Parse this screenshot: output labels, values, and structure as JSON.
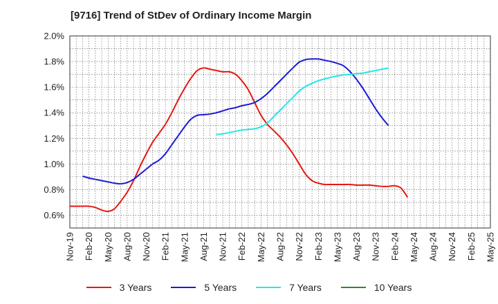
{
  "chart_data": {
    "type": "line",
    "title": "[9716]  Trend of StDev of Ordinary Income Margin",
    "xlabel": "",
    "ylabel": "",
    "x_ticks": [
      "Nov-19",
      "Feb-20",
      "May-20",
      "Aug-20",
      "Nov-20",
      "Feb-21",
      "May-21",
      "Aug-21",
      "Nov-21",
      "Feb-22",
      "May-22",
      "Aug-22",
      "Nov-22",
      "Feb-23",
      "May-23",
      "Aug-23",
      "Nov-23",
      "Feb-24",
      "May-24",
      "Aug-24",
      "Nov-24",
      "Feb-25",
      "May-25"
    ],
    "y_ticks": [
      "0.6%",
      "0.8%",
      "1.0%",
      "1.2%",
      "1.4%",
      "1.6%",
      "1.8%",
      "2.0%"
    ],
    "ylim": [
      0.5,
      2.0
    ],
    "grid": "dotted",
    "legend_position": "bottom",
    "series": [
      {
        "name": "3 Years",
        "color": "#e8150f",
        "values": [
          0.67,
          0.67,
          0.67,
          0.67,
          0.66,
          0.64,
          0.63,
          0.65,
          0.71,
          0.78,
          0.87,
          0.98,
          1.08,
          1.17,
          1.24,
          1.31,
          1.4,
          1.5,
          1.59,
          1.67,
          1.73,
          1.75,
          1.74,
          1.73,
          1.72,
          1.72,
          1.7,
          1.65,
          1.58,
          1.48,
          1.38,
          1.31,
          1.26,
          1.21,
          1.15,
          1.08,
          1.0,
          0.92,
          0.87,
          0.85,
          0.84,
          0.84,
          0.84,
          0.84,
          0.84,
          0.835,
          0.835,
          0.835,
          0.83,
          0.825,
          0.825,
          0.83,
          0.81,
          0.74
        ]
      },
      {
        "name": "5 Years",
        "color": "#1a1ad6",
        "values": [
          null,
          null,
          0.905,
          0.89,
          0.88,
          0.87,
          0.86,
          0.85,
          0.845,
          0.855,
          0.88,
          0.92,
          0.96,
          1.0,
          1.03,
          1.08,
          1.15,
          1.22,
          1.29,
          1.35,
          1.38,
          1.385,
          1.39,
          1.4,
          1.415,
          1.43,
          1.44,
          1.455,
          1.465,
          1.48,
          1.51,
          1.55,
          1.6,
          1.65,
          1.7,
          1.75,
          1.795,
          1.815,
          1.82,
          1.82,
          1.81,
          1.8,
          1.785,
          1.765,
          1.72,
          1.66,
          1.59,
          1.51,
          1.43,
          1.36,
          1.3
        ]
      },
      {
        "name": "7 Years",
        "color": "#22e8e8",
        "values": [
          null,
          null,
          null,
          null,
          null,
          null,
          null,
          null,
          null,
          null,
          null,
          null,
          null,
          null,
          null,
          null,
          null,
          null,
          null,
          null,
          null,
          null,
          null,
          1.23,
          1.235,
          1.245,
          1.255,
          1.265,
          1.27,
          1.275,
          1.29,
          1.32,
          1.37,
          1.42,
          1.47,
          1.52,
          1.57,
          1.605,
          1.63,
          1.65,
          1.665,
          1.677,
          1.687,
          1.695,
          1.7,
          1.705,
          1.71,
          1.72,
          1.73,
          1.74,
          1.75
        ]
      },
      {
        "name": "10 Years",
        "color": "#2a8a2a",
        "values": []
      }
    ]
  }
}
